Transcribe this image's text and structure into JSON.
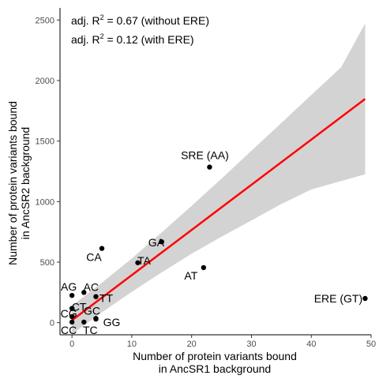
{
  "chart_data": {
    "type": "scatter",
    "xlabel": [
      "Number of protein variants bound",
      "in AncSR1 background"
    ],
    "ylabel": [
      "Number of protein variants bound",
      "in AncSR2 background"
    ],
    "xlim": [
      -2,
      50
    ],
    "ylim": [
      -100,
      2600
    ],
    "x_ticks": [
      0,
      10,
      20,
      30,
      40,
      50
    ],
    "y_ticks": [
      0,
      500,
      1000,
      1500,
      2000,
      2500
    ],
    "grid": false,
    "annotations": {
      "line1": {
        "prefix": "adj. R",
        "sup": "2",
        "suffix": " = 0.67 (without ERE)"
      },
      "line2": {
        "prefix": "adj. R",
        "sup": "2",
        "suffix": " = 0.12 (with ERE)"
      }
    },
    "points": [
      {
        "label": "SRE (AA)",
        "x": 23,
        "y": 1285
      },
      {
        "label": "ERE (GT)",
        "x": 49,
        "y": 200
      },
      {
        "label": "AT",
        "x": 22,
        "y": 455
      },
      {
        "label": "GA",
        "x": 15,
        "y": 668
      },
      {
        "label": "TA",
        "x": 11,
        "y": 495
      },
      {
        "label": "CA",
        "x": 5,
        "y": 613
      },
      {
        "label": "AC",
        "x": 2,
        "y": 250
      },
      {
        "label": "AG",
        "x": 0,
        "y": 225
      },
      {
        "label": "TT",
        "x": 4,
        "y": 215
      },
      {
        "label": "CT",
        "x": 0,
        "y": 118
      },
      {
        "label": "GC",
        "x": 4,
        "y": 35
      },
      {
        "label": "CG",
        "x": 0,
        "y": 50
      },
      {
        "label": "GG",
        "x": 4,
        "y": 30
      },
      {
        "label": "TC",
        "x": 2,
        "y": 5
      },
      {
        "label": "CC",
        "x": 0,
        "y": 5
      }
    ],
    "fit_line": {
      "color": "#ff0000",
      "x": [
        0,
        49
      ],
      "y": [
        20,
        1848
      ]
    },
    "confidence_band": {
      "color": "#d3d3d3",
      "x": [
        0,
        5,
        10,
        15,
        20,
        25,
        30,
        35,
        40,
        45,
        49
      ],
      "upper": [
        140,
        330,
        530,
        745,
        965,
        1190,
        1420,
        1650,
        1880,
        2110,
        2470
      ],
      "lower": [
        -95,
        85,
        255,
        415,
        570,
        710,
        845,
        980,
        1100,
        1170,
        1225
      ]
    }
  }
}
